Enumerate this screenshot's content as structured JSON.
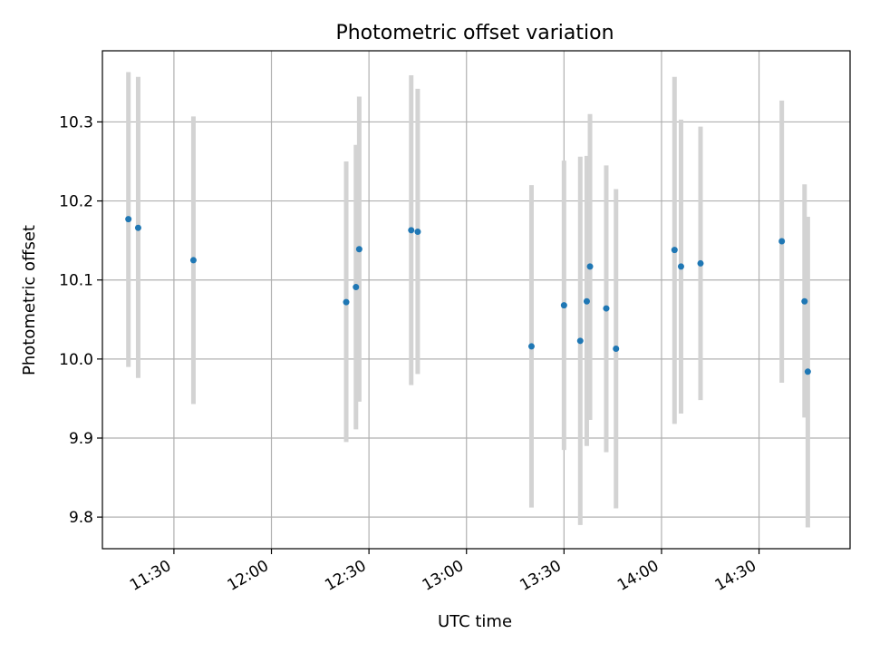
{
  "chart_data": {
    "type": "scatter",
    "title": "Photometric offset variation",
    "xlabel": "UTC time",
    "ylabel": "Photometric offset",
    "xlim": [
      "11:08",
      "14:58"
    ],
    "ylim": [
      9.76,
      10.39
    ],
    "grid": true,
    "x_ticks": [
      "11:30",
      "12:00",
      "12:30",
      "13:00",
      "13:30",
      "14:00",
      "14:30"
    ],
    "y_ticks": [
      "9.8",
      "9.9",
      "10.0",
      "10.1",
      "10.2",
      "10.3"
    ],
    "marker_color": "#1f77b4",
    "errorbar_color": "#d3d3d3",
    "points": [
      {
        "x": "11:16",
        "y": 10.177,
        "ylow": 9.99,
        "yhigh": 10.363
      },
      {
        "x": "11:19",
        "y": 10.166,
        "ylow": 9.976,
        "yhigh": 10.357
      },
      {
        "x": "11:36",
        "y": 10.125,
        "ylow": 9.943,
        "yhigh": 10.307
      },
      {
        "x": "12:23",
        "y": 10.072,
        "ylow": 9.895,
        "yhigh": 10.25
      },
      {
        "x": "12:26",
        "y": 10.091,
        "ylow": 9.911,
        "yhigh": 10.271
      },
      {
        "x": "12:27",
        "y": 10.139,
        "ylow": 9.946,
        "yhigh": 10.332
      },
      {
        "x": "12:43",
        "y": 10.163,
        "ylow": 9.967,
        "yhigh": 10.359
      },
      {
        "x": "12:45",
        "y": 10.161,
        "ylow": 9.981,
        "yhigh": 10.342
      },
      {
        "x": "13:20",
        "y": 10.016,
        "ylow": 9.812,
        "yhigh": 10.22
      },
      {
        "x": "13:30",
        "y": 10.068,
        "ylow": 9.885,
        "yhigh": 10.251
      },
      {
        "x": "13:35",
        "y": 10.023,
        "ylow": 9.79,
        "yhigh": 10.256
      },
      {
        "x": "13:37",
        "y": 10.073,
        "ylow": 9.89,
        "yhigh": 10.257
      },
      {
        "x": "13:38",
        "y": 10.117,
        "ylow": 9.923,
        "yhigh": 10.31
      },
      {
        "x": "13:43",
        "y": 10.064,
        "ylow": 9.882,
        "yhigh": 10.245
      },
      {
        "x": "13:46",
        "y": 10.013,
        "ylow": 9.811,
        "yhigh": 10.215
      },
      {
        "x": "14:04",
        "y": 10.138,
        "ylow": 9.918,
        "yhigh": 10.357
      },
      {
        "x": "14:06",
        "y": 10.117,
        "ylow": 9.931,
        "yhigh": 10.303
      },
      {
        "x": "14:12",
        "y": 10.121,
        "ylow": 9.948,
        "yhigh": 10.294
      },
      {
        "x": "14:37",
        "y": 10.149,
        "ylow": 9.97,
        "yhigh": 10.327
      },
      {
        "x": "14:44",
        "y": 10.073,
        "ylow": 9.926,
        "yhigh": 10.221
      },
      {
        "x": "14:45",
        "y": 9.984,
        "ylow": 9.787,
        "yhigh": 10.18
      }
    ]
  }
}
